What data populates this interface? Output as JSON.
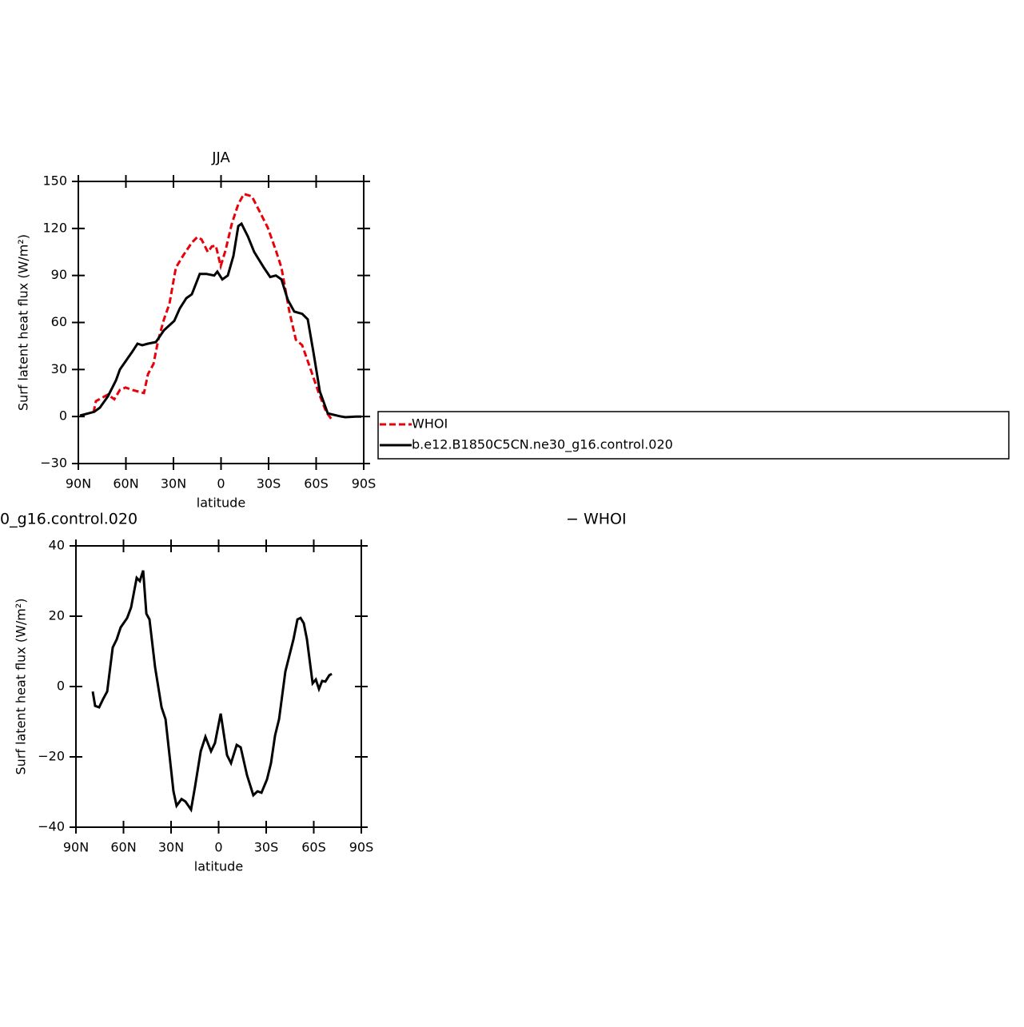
{
  "chart_data": [
    {
      "type": "line",
      "title": "JJA",
      "xlabel": "latitude",
      "ylabel": "Surf latent heat flux (W/m²)",
      "xlim": [
        90,
        -90
      ],
      "xticks": [
        {
          "value": 90,
          "label": "90N"
        },
        {
          "value": 60,
          "label": "60N"
        },
        {
          "value": 30,
          "label": "30N"
        },
        0,
        {
          "value": -30,
          "label": "30S"
        },
        {
          "value": -60,
          "label": "60S"
        },
        {
          "value": -90,
          "label": "90S"
        }
      ],
      "ylim": [
        -30,
        150
      ],
      "yticks": [
        {
          "value": -30,
          "label": "−30"
        },
        0,
        30,
        60,
        90,
        120,
        150
      ],
      "legend": "right",
      "series": [
        {
          "name": "WHOI",
          "color": "#e8000b",
          "dash": true,
          "x": [
            80.4,
            78.9,
            74.9,
            71.3,
            67.3,
            63.8,
            60.2,
            56.2,
            48.6,
            46.1,
            42.6,
            39.6,
            36.0,
            32.5,
            28.5,
            23.4,
            18.4,
            14.9,
            12.3,
            8.3,
            5.8,
            3.3,
            0.2,
            -2.8,
            -6.8,
            -10.9,
            -14.4,
            -19.4,
            -24.5,
            -29.5,
            -34.6,
            -38.1,
            -43.1,
            -47.2,
            -51.2,
            -56.2,
            -61.3,
            -66.3,
            -69.9
          ],
          "values": [
            2.6,
            9.8,
            12,
            14,
            11,
            17,
            18.5,
            17,
            15,
            27,
            33.5,
            49,
            62,
            72,
            95,
            103.5,
            111,
            114.5,
            113,
            105,
            108.5,
            109,
            96,
            106,
            123,
            135.5,
            142,
            140.5,
            130.5,
            120.5,
            106,
            95,
            67,
            49,
            45.5,
            31,
            16,
            3,
            -2
          ]
        },
        {
          "name": "b.e12.B1850C5CN.ne30_g16.control.020",
          "color": "#000000",
          "dash": false,
          "x": [
            89,
            80,
            76.4,
            71.3,
            66.3,
            63.8,
            59.7,
            56.2,
            52.7,
            49.7,
            46.1,
            41.1,
            36.0,
            29.5,
            26.0,
            21.9,
            18.4,
            13.4,
            9.3,
            4.3,
            2.3,
            -0.8,
            -4.3,
            -7.8,
            -10.9,
            -12.9,
            -16.9,
            -20.9,
            -27,
            -31,
            -34.6,
            -38.1,
            -42.1,
            -46.2,
            -51.2,
            -54.7,
            -58.3,
            -62.3,
            -67.3,
            -74.9,
            -78.4,
            -85,
            -88.5
          ],
          "values": [
            0.6,
            3,
            5.7,
            13,
            23,
            30,
            36,
            41,
            46.5,
            45.5,
            46.5,
            47.5,
            55,
            61,
            69,
            75.5,
            78,
            91,
            91,
            90,
            92.5,
            87.5,
            90,
            102.5,
            121.5,
            123,
            115,
            105,
            95,
            89,
            90,
            87.5,
            74.5,
            67,
            65.5,
            62,
            41,
            16,
            2,
            0.2,
            -0.4,
            0,
            0
          ]
        }
      ]
    },
    {
      "type": "line",
      "title_parts": [
        "0_g16.control.020",
        "− WHOI"
      ],
      "xlabel": "latitude",
      "ylabel": "Surf latent heat flux (W/m²)",
      "xlim": [
        90,
        -90
      ],
      "xticks": [
        {
          "value": 90,
          "label": "90N"
        },
        {
          "value": 60,
          "label": "60N"
        },
        {
          "value": 30,
          "label": "30N"
        },
        0,
        {
          "value": -30,
          "label": "30S"
        },
        {
          "value": -60,
          "label": "60S"
        },
        {
          "value": -90,
          "label": "90S"
        }
      ],
      "ylim": [
        -40,
        40
      ],
      "yticks": [
        {
          "value": -40,
          "label": "−40"
        },
        {
          "value": -20,
          "label": "−20"
        },
        0,
        20,
        40
      ],
      "series": [
        {
          "color": "#000000",
          "dash": false,
          "x": [
            79.4,
            77.9,
            75.4,
            72.9,
            70.3,
            66.8,
            64.3,
            61.8,
            57.7,
            55.2,
            51.7,
            49.7,
            47.6,
            45.6,
            43.6,
            40.1,
            36.0,
            33.5,
            28.5,
            26.5,
            23.4,
            20.9,
            17.4,
            14.9,
            11.3,
            8.3,
            4.8,
            2.3,
            -1.3,
            -5.3,
            -7.8,
            -11.4,
            -13.9,
            -17.9,
            -21.9,
            -24.5,
            -27,
            -30.5,
            -33.0,
            -35.6,
            -38.1,
            -42.1,
            -47.2,
            -49.7,
            -51.7,
            -53.7,
            -55.7,
            -59.3,
            -61.3,
            -63.3,
            -65.3,
            -67.3,
            -69.8,
            -71.4
          ],
          "values": [
            -1.4,
            -5.5,
            -5.9,
            -3.6,
            -1.4,
            11.1,
            13.4,
            16.8,
            19.5,
            22.5,
            30.9,
            30,
            33,
            20.7,
            19.1,
            5.5,
            -5.9,
            -9.3,
            -29.8,
            -33.9,
            -32,
            -32.7,
            -35,
            -28.6,
            -18.4,
            -14.3,
            -18.4,
            -16.1,
            -7.7,
            -19.5,
            -21.8,
            -16.6,
            -17.3,
            -25.2,
            -30.9,
            -29.8,
            -30.2,
            -26.4,
            -21.8,
            -13.9,
            -9.3,
            4.3,
            13.4,
            19.1,
            19.5,
            18,
            13.4,
            0.9,
            2,
            -0.7,
            1.6,
            1.4,
            3.2,
            3.6
          ]
        }
      ]
    }
  ]
}
